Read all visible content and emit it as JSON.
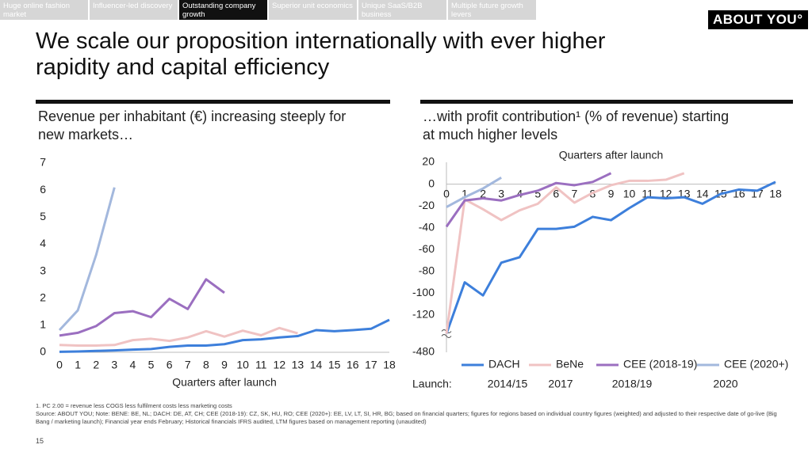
{
  "nav": {
    "tabs": [
      "Huge online fashion market",
      "Influencer-led discovery",
      "Outstanding company growth",
      "Superior unit economics",
      "Unique SaaS/B2B business",
      "Multiple future growth levers"
    ],
    "active": 2
  },
  "logo": "ABOUT YOU°",
  "title": "We scale our proposition internationally with ever higher rapidity and capital efficiency",
  "chart_data": [
    {
      "type": "line",
      "title": "Revenue per inhabitant (€) increasing steeply for new markets…",
      "xlabel": "Quarters after launch",
      "x": [
        0,
        1,
        2,
        3,
        4,
        5,
        6,
        7,
        8,
        9,
        10,
        11,
        12,
        13,
        14,
        15,
        16,
        17,
        18
      ],
      "xlim": [
        0,
        18
      ],
      "ylim": [
        0,
        7
      ],
      "yticks": [
        0,
        1,
        2,
        3,
        4,
        5,
        6,
        7
      ],
      "series": [
        {
          "color": "#3d7fdb",
          "values": [
            0.02,
            0.03,
            0.05,
            0.07,
            0.1,
            0.12,
            0.2,
            0.25,
            0.25,
            0.3,
            0.45,
            0.48,
            0.55,
            0.6,
            0.82,
            0.78,
            0.82,
            0.87,
            1.2
          ]
        },
        {
          "color": "#f0c3c3",
          "values": [
            0.27,
            0.25,
            0.25,
            0.27,
            0.45,
            0.5,
            0.42,
            0.55,
            0.78,
            0.58,
            0.8,
            0.63,
            0.9,
            0.7,
            null,
            null,
            null,
            null,
            null
          ]
        },
        {
          "color": "#9b6fc0",
          "values": [
            0.62,
            0.72,
            0.97,
            1.45,
            1.52,
            1.3,
            1.98,
            1.6,
            2.7,
            2.2,
            null,
            null,
            null,
            null,
            null,
            null,
            null,
            null,
            null
          ]
        },
        {
          "color": "#a3b8dd",
          "values": [
            0.82,
            1.55,
            3.6,
            6.1,
            null,
            null,
            null,
            null,
            null,
            null,
            null,
            null,
            null,
            null,
            null,
            null,
            null,
            null,
            null
          ]
        }
      ]
    },
    {
      "type": "line",
      "title": "…with profit contribution¹ (% of revenue) starting at much higher levels",
      "xlabel": "Quarters after launch",
      "x": [
        0,
        1,
        2,
        3,
        4,
        5,
        6,
        7,
        8,
        9,
        10,
        11,
        12,
        13,
        14,
        15,
        16,
        17,
        18
      ],
      "xlim": [
        0,
        18
      ],
      "ylim": [
        -480,
        20
      ],
      "yticks": [
        20,
        0,
        -20,
        -40,
        -60,
        -80,
        -100,
        -120,
        -480
      ],
      "ybreak": -120,
      "legend": "bottom",
      "launch_label": "Launch:",
      "series": [
        {
          "name": "DACH",
          "launch": "2014/15",
          "color": "#3d7fdb",
          "values": [
            -300,
            -90,
            -102,
            -72,
            -67,
            -41,
            -41,
            -39,
            -30,
            -33,
            -22,
            -12,
            -13,
            -12,
            -18,
            -9,
            -5,
            -6,
            2
          ]
        },
        {
          "name": "BeNe",
          "launch": "2017",
          "color": "#f0c3c3",
          "values": [
            -300,
            -14,
            -23,
            -33,
            -24,
            -18,
            -3,
            -17,
            -8,
            -1,
            3,
            3,
            4,
            10,
            null,
            null,
            null,
            null,
            null
          ]
        },
        {
          "name": "CEE (2018-19)",
          "launch": "2018/19",
          "color": "#9b6fc0",
          "values": [
            -39,
            -15,
            -13,
            -15,
            -10,
            -6,
            1,
            -1,
            2,
            10,
            null,
            null,
            null,
            null,
            null,
            null,
            null,
            null,
            null
          ]
        },
        {
          "name": "CEE (2020+)",
          "launch": "2020",
          "color": "#a3b8dd",
          "values": [
            -21,
            -12,
            -4,
            6,
            null,
            null,
            null,
            null,
            null,
            null,
            null,
            null,
            null,
            null,
            null,
            null,
            null,
            null,
            null
          ]
        }
      ]
    }
  ],
  "footnotes": [
    "1. PC 2.00 = revenue less COGS less fulfilment costs less marketing costs",
    "Source: ABOUT YOU; Note: BENE: BE, NL; DACH: DE, AT, CH; CEE (2018-19): CZ, SK, HU, RO; CEE (2020+): EE, LV, LT, SI, HR, BG; based on financial quarters; figures for regions based on individual country figures (weighted) and adjusted to their respective date of go-live (Big Bang / marketing launch); Financial year ends February; Historical financials IFRS audited, LTM figures based on management reporting (unaudited)"
  ],
  "page_number": "15"
}
